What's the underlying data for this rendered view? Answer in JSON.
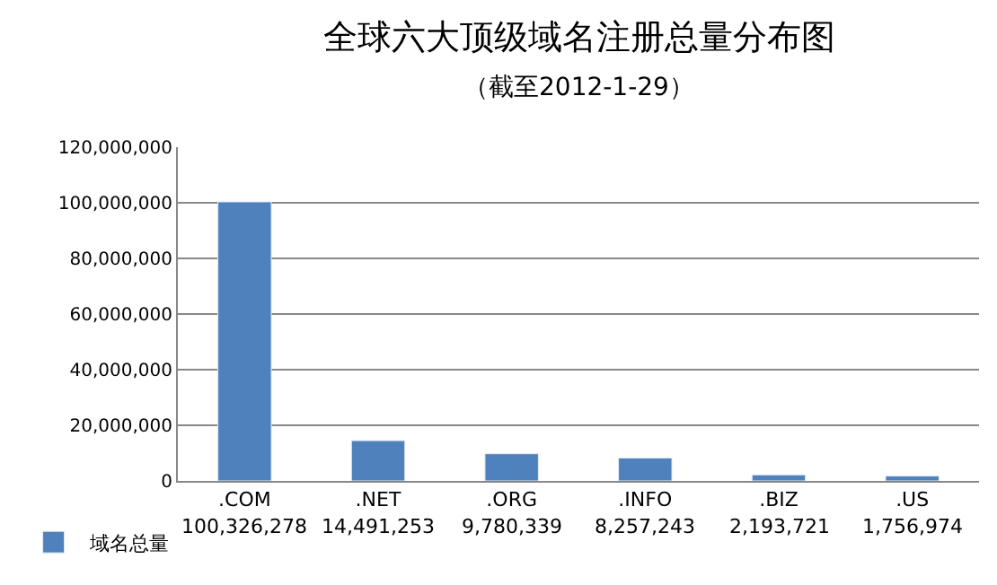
{
  "chart_data": {
    "type": "bar",
    "title": "全球六大顶级域名注册总量分布图",
    "subtitle": "（截至2012-1-29）",
    "categories": [
      ".COM",
      ".NET",
      ".ORG",
      ".INFO",
      ".BIZ",
      ".US"
    ],
    "series": [
      {
        "name": "域名总量",
        "color": "#4f81bd",
        "values": [
          100326278,
          14491253,
          9780339,
          8257243,
          2193721,
          1756974
        ],
        "value_labels": [
          "100,326,278",
          "14,491,253",
          "9,780,339",
          "8,257,243",
          "2,193,721",
          "1,756,974"
        ]
      }
    ],
    "ylim": [
      0,
      120000000
    ],
    "yticks": [
      {
        "value": 0,
        "label": "0"
      },
      {
        "value": 20000000,
        "label": "20,000,000"
      },
      {
        "value": 40000000,
        "label": "40,000,000"
      },
      {
        "value": 60000000,
        "label": "60,000,000"
      },
      {
        "value": 80000000,
        "label": "80,000,000"
      },
      {
        "value": 100000000,
        "label": "100,000,000"
      },
      {
        "value": 120000000,
        "label": "120,000,000"
      }
    ],
    "grid": "y",
    "legend": "bottom left"
  }
}
